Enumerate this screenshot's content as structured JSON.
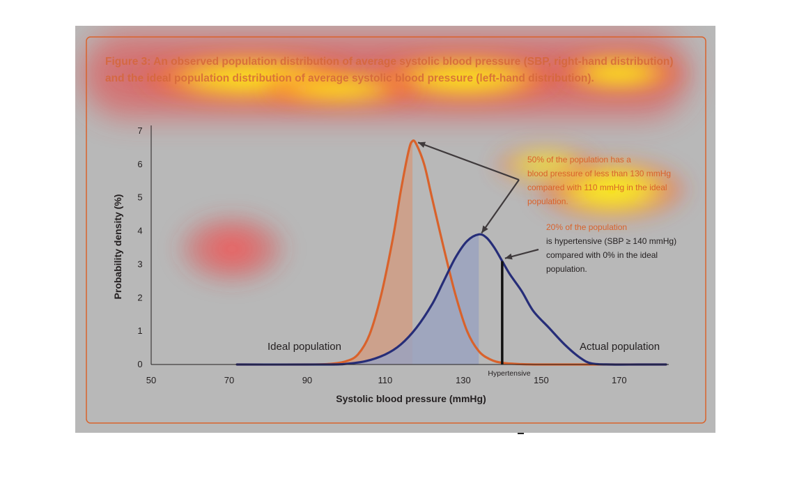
{
  "chart_data": {
    "type": "line",
    "title": "Figure 3: An observed population distribution of average systolic blood pressure (SBP, right-hand distribution)",
    "subtitle": "and the ideal population distribution of average systolic blood pressure (left-hand distribution).",
    "xlabel": "Systolic blood pressure (mmHg)",
    "ylabel": "Probability density (%)",
    "xlim": [
      50,
      182
    ],
    "ylim": [
      0,
      7
    ],
    "x_ticks": [
      50,
      70,
      90,
      110,
      130,
      150,
      170
    ],
    "y_ticks": [
      0,
      1,
      2,
      3,
      4,
      5,
      6,
      7
    ],
    "grid": false,
    "series": [
      {
        "name": "Ideal population",
        "color": "#d9622b",
        "x": [
          72,
          90,
          96,
          100,
          103,
          106,
          109,
          112,
          114,
          116,
          117,
          118,
          120,
          122,
          125,
          128,
          131,
          134,
          137,
          140,
          145,
          150,
          160,
          170,
          182
        ],
        "y": [
          0,
          0,
          0.02,
          0.1,
          0.3,
          0.9,
          2.1,
          3.8,
          5.2,
          6.4,
          6.7,
          6.6,
          6.0,
          5.0,
          3.5,
          2.1,
          1.0,
          0.4,
          0.15,
          0.05,
          0.01,
          0,
          0,
          0,
          0
        ],
        "shaded_to": 117,
        "shade_color": "#cf9c84"
      },
      {
        "name": "Actual population",
        "color": "#262d78",
        "x": [
          72,
          95,
          100,
          105,
          110,
          114,
          118,
          122,
          125,
          128,
          131,
          134,
          136,
          138,
          140,
          142,
          145,
          148,
          152,
          156,
          160,
          163,
          168,
          175,
          182
        ],
        "y": [
          0,
          0,
          0.02,
          0.1,
          0.3,
          0.6,
          1.1,
          1.8,
          2.5,
          3.2,
          3.7,
          3.9,
          3.8,
          3.5,
          3.1,
          2.7,
          2.2,
          1.6,
          1.1,
          0.6,
          0.2,
          0.03,
          0,
          0,
          0
        ],
        "shaded_to": 134,
        "shade_color": "#9aa2be"
      }
    ],
    "hypertensive_line": {
      "x": 140,
      "label": "Hypertensive"
    },
    "annotations": [
      {
        "lines": [
          "50% of the population has a",
          "blood pressure of less than 130 mmHg",
          "compared with 110 mmHg in the ideal",
          "population."
        ]
      },
      {
        "lines": [
          "20% of the population",
          "is hypertensive (SBP ≥ 140 mmHg)",
          "compared with 0% in the ideal",
          "population."
        ]
      }
    ]
  }
}
